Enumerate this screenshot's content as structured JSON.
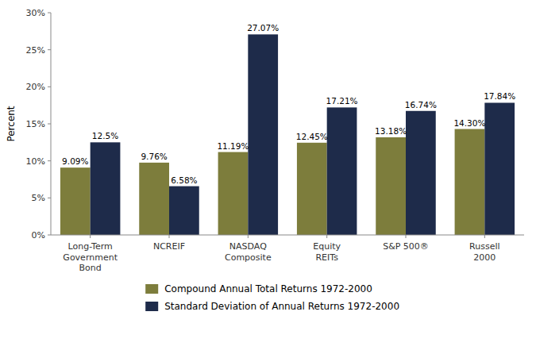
{
  "chart_data": {
    "type": "bar",
    "ylabel": "Percent",
    "categories": [
      "Long-Term\nGovernment\nBond",
      "NCREIF",
      "NASDAQ\nComposite",
      "Equity\nREITs",
      "S&P 500®",
      "Russell\n2000"
    ],
    "series": [
      {
        "name": "Compound Annual Total Returns 1972-2000",
        "color": "#7d7d3c",
        "values": [
          9.09,
          9.76,
          11.19,
          12.45,
          13.18,
          14.3
        ],
        "value_labels": [
          "9.09%",
          "9.76%",
          "11.19%",
          "12.45%",
          "13.18%",
          "14.30%"
        ]
      },
      {
        "name": "Standard Deviation of Annual Returns 1972-2000",
        "color": "#1e2b4a",
        "values": [
          12.5,
          6.58,
          27.07,
          17.21,
          16.74,
          17.84
        ],
        "value_labels": [
          "12.5%",
          "6.58%",
          "27.07%",
          "17.21%",
          "16.74%",
          "17.84%"
        ]
      }
    ],
    "ylim": [
      0,
      30
    ],
    "yticks": [
      {
        "value": 0,
        "label": "0%"
      },
      {
        "value": 5,
        "label": "5%"
      },
      {
        "value": 10,
        "label": "10%"
      },
      {
        "value": 15,
        "label": "15%"
      },
      {
        "value": 20,
        "label": "20%"
      },
      {
        "value": 25,
        "label": "25%"
      },
      {
        "value": 30,
        "label": "30%"
      }
    ],
    "grid": false,
    "data_labels": true,
    "legend": "bottom"
  }
}
